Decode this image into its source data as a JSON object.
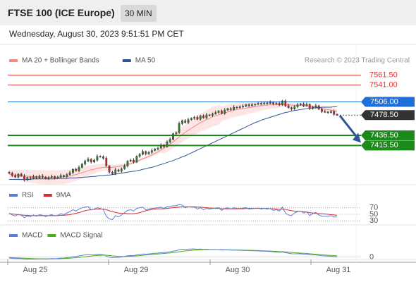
{
  "header": {
    "title": "FTSE 100 (ICE Europe)",
    "interval": "30 MIN",
    "timestamp": "Wednesday, August 30, 2023 9:51:51 PM CET"
  },
  "watermark": "Research © 2023 Trading Central",
  "colors": {
    "price_up": "#2e7d32",
    "price_down": "#c62828",
    "ma20": "#f28b82",
    "bollinger_fill": "#fde0e0",
    "ma50": "#2f5597",
    "resistance": "#e53935",
    "pivot": "#1e6fd9",
    "support": "#1b8a1b",
    "current": "#333333",
    "rsi": "#5b7fd6",
    "rsi_ma": "#d32f2f",
    "macd": "#5b7fd6",
    "macd_signal": "#4caf1f"
  },
  "chart_data": [
    {
      "type": "candlestick",
      "legend": [
        {
          "name": "MA 20 + Bollinger Bands",
          "color": "#f28b82"
        },
        {
          "name": "MA 50",
          "color": "#2f5597"
        }
      ],
      "x_ticks": [
        "Aug 25",
        "Aug 29",
        "Aug 30",
        "Aug 31"
      ],
      "ylim": [
        7334,
        7577
      ],
      "levels": [
        {
          "label": "7561.50",
          "value": 7561.5,
          "kind": "resistance"
        },
        {
          "label": "7541.00",
          "value": 7541.0,
          "kind": "resistance"
        },
        {
          "label": "7506.00",
          "value": 7506.0,
          "kind": "pivot"
        },
        {
          "label": "7478.50",
          "value": 7478.5,
          "kind": "current"
        },
        {
          "label": "7436.50",
          "value": 7436.5,
          "kind": "support"
        },
        {
          "label": "7415.50",
          "value": 7415.5,
          "kind": "support"
        }
      ],
      "close": [
        7358,
        7353,
        7350,
        7356,
        7352,
        7344,
        7349,
        7347,
        7351,
        7348,
        7352,
        7350,
        7347,
        7349,
        7351,
        7348,
        7350,
        7353,
        7351,
        7355,
        7359,
        7366,
        7363,
        7370,
        7377,
        7383,
        7387,
        7381,
        7385,
        7393,
        7392,
        7389,
        7373,
        7360,
        7357,
        7365,
        7362,
        7367,
        7373,
        7383,
        7385,
        7381,
        7393,
        7397,
        7403,
        7398,
        7401,
        7405,
        7408,
        7410,
        7416,
        7413,
        7423,
        7428,
        7440,
        7442,
        7461,
        7467,
        7463,
        7469,
        7472,
        7474,
        7470,
        7477,
        7473,
        7479,
        7478,
        7481,
        7484,
        7487,
        7482,
        7489,
        7492,
        7490,
        7495,
        7494,
        7496,
        7497,
        7500,
        7498,
        7500,
        7501,
        7503,
        7502,
        7504,
        7503,
        7505,
        7502,
        7503,
        7500,
        7508,
        7498,
        7494,
        7491,
        7496,
        7500,
        7502,
        7498,
        7501,
        7492,
        7495,
        7498,
        7491,
        7486,
        7485,
        7484,
        7486,
        7480,
        7479
      ],
      "ma20": [
        7356,
        7355,
        7354,
        7354,
        7353,
        7352,
        7352,
        7351,
        7351,
        7350,
        7350,
        7350,
        7349,
        7349,
        7349,
        7349,
        7349,
        7350,
        7350,
        7351,
        7352,
        7354,
        7355,
        7357,
        7359,
        7361,
        7363,
        7365,
        7366,
        7368,
        7369,
        7370,
        7370,
        7370,
        7370,
        7371,
        7372,
        7373,
        7374,
        7376,
        7378,
        7380,
        7382,
        7385,
        7388,
        7390,
        7393,
        7396,
        7399,
        7402,
        7406,
        7410,
        7414,
        7418,
        7423,
        7428,
        7433,
        7438,
        7443,
        7447,
        7451,
        7455,
        7459,
        7463,
        7466,
        7469,
        7472,
        7475,
        7477,
        7479,
        7481,
        7483,
        7485,
        7487,
        7489,
        7490,
        7491,
        7492,
        7493,
        7494,
        7495,
        7496,
        7497,
        7498,
        7499,
        7499,
        7500,
        7500,
        7500,
        7500,
        7501,
        7500,
        7500,
        7499,
        7499,
        7499,
        7499,
        7498,
        7498,
        7497,
        7496,
        7495,
        7494,
        7492,
        7491,
        7490,
        7489,
        7487,
        7486
      ],
      "ma50": [
        7345,
        7345,
        7345,
        7345,
        7345,
        7345,
        7345,
        7345,
        7346,
        7346,
        7346,
        7346,
        7346,
        7346,
        7346,
        7346,
        7347,
        7347,
        7347,
        7347,
        7348,
        7348,
        7348,
        7349,
        7349,
        7350,
        7350,
        7351,
        7351,
        7352,
        7353,
        7353,
        7354,
        7354,
        7355,
        7356,
        7357,
        7358,
        7359,
        7360,
        7361,
        7362,
        7363,
        7364,
        7366,
        7367,
        7369,
        7370,
        7372,
        7374,
        7376,
        7378,
        7380,
        7382,
        7384,
        7387,
        7389,
        7392,
        7394,
        7397,
        7400,
        7403,
        7406,
        7409,
        7412,
        7415,
        7418,
        7421,
        7424,
        7427,
        7430,
        7433,
        7436,
        7439,
        7442,
        7445,
        7448,
        7451,
        7454,
        7457,
        7460,
        7463,
        7465,
        7468,
        7470,
        7472,
        7474,
        7476,
        7478,
        7480,
        7482,
        7484,
        7485,
        7487,
        7488,
        7489,
        7490,
        7491,
        7492,
        7493,
        7493,
        7494,
        7494,
        7495,
        7495,
        7495,
        7495,
        7496,
        7496
      ]
    },
    {
      "type": "line",
      "legend": [
        {
          "name": "RSI",
          "color": "#5b7fd6"
        },
        {
          "name": "9MA",
          "color": "#d32f2f"
        }
      ],
      "y_ticks": [
        "70",
        "50",
        "30"
      ],
      "ylim": [
        20,
        80
      ],
      "rsi": [
        54,
        48,
        45,
        50,
        47,
        40,
        45,
        43,
        48,
        44,
        49,
        47,
        43,
        46,
        49,
        45,
        47,
        52,
        49,
        54,
        58,
        64,
        60,
        66,
        70,
        72,
        74,
        63,
        66,
        70,
        68,
        64,
        44,
        36,
        34,
        46,
        42,
        48,
        55,
        62,
        64,
        60,
        68,
        70,
        72,
        64,
        66,
        68,
        69,
        70,
        72,
        68,
        73,
        74,
        76,
        76,
        80,
        78,
        70,
        73,
        72,
        72,
        66,
        70,
        64,
        68,
        66,
        68,
        69,
        70,
        62,
        68,
        70,
        66,
        70,
        68,
        68,
        69,
        70,
        66,
        67,
        68,
        69,
        66,
        68,
        66,
        68,
        62,
        64,
        60,
        72,
        54,
        48,
        46,
        54,
        58,
        60,
        54,
        58,
        46,
        52,
        56,
        48,
        44,
        44,
        44,
        46,
        42,
        42
      ],
      "ma9": [
        52,
        51,
        50,
        49,
        48,
        47,
        47,
        46,
        46,
        46,
        46,
        46,
        46,
        46,
        46,
        46,
        46,
        47,
        47,
        48,
        49,
        51,
        53,
        55,
        58,
        61,
        63,
        64,
        65,
        66,
        66,
        66,
        64,
        61,
        58,
        56,
        54,
        53,
        53,
        52,
        52,
        52,
        53,
        55,
        58,
        61,
        63,
        65,
        66,
        67,
        67,
        67,
        68,
        69,
        70,
        71,
        72,
        73,
        73,
        73,
        73,
        73,
        72,
        72,
        71,
        70,
        69,
        69,
        68,
        68,
        67,
        67,
        67,
        67,
        67,
        67,
        67,
        67,
        68,
        68,
        68,
        68,
        68,
        68,
        68,
        68,
        67,
        67,
        66,
        65,
        66,
        65,
        63,
        61,
        60,
        59,
        59,
        58,
        57,
        55,
        54,
        53,
        52,
        52,
        51,
        50,
        49,
        48,
        47
      ]
    },
    {
      "type": "line",
      "legend": [
        {
          "name": "MACD",
          "color": "#5b7fd6"
        },
        {
          "name": "MACD Signal",
          "color": "#4caf1f"
        }
      ],
      "y_ticks": [
        "0"
      ],
      "ylim": [
        -10,
        22
      ],
      "macd": [
        -2,
        -2.5,
        -3,
        -2.8,
        -3.2,
        -4,
        -4,
        -4.2,
        -3.8,
        -4,
        -3.6,
        -3.6,
        -3.8,
        -3.5,
        -3,
        -3.1,
        -2.8,
        -2.2,
        -2,
        -1.4,
        -0.6,
        0.6,
        0.8,
        2,
        3,
        4,
        4.6,
        4,
        4.2,
        5,
        4.8,
        4.2,
        1.6,
        -0.5,
        -1.2,
        -0.6,
        -0.8,
        0,
        1,
        2.3,
        2.8,
        2.6,
        3.8,
        4.6,
        5.6,
        5.4,
        5.8,
        6.4,
        7,
        7.4,
        8.2,
        8.2,
        9.2,
        9.8,
        11.2,
        11.6,
        13.8,
        14.6,
        14.4,
        14.8,
        15,
        15.1,
        14.6,
        15,
        14.4,
        14.6,
        14.3,
        14.2,
        14.1,
        14,
        13.2,
        13.4,
        13.4,
        13,
        13.2,
        12.8,
        12.6,
        12.4,
        12.4,
        12,
        11.8,
        11.6,
        11.5,
        11.2,
        11,
        10.6,
        10.4,
        9.8,
        9.4,
        8.8,
        9.4,
        8.2,
        7.2,
        6.2,
        6,
        6,
        6,
        5.4,
        5.2,
        4,
        3.8,
        3.8,
        3.2,
        2.4,
        2,
        1.6,
        1.4,
        0.8,
        0.4
      ],
      "signal": [
        -1,
        -1.3,
        -1.6,
        -1.9,
        -2.1,
        -2.4,
        -2.7,
        -2.9,
        -3.1,
        -3.3,
        -3.4,
        -3.4,
        -3.5,
        -3.5,
        -3.5,
        -3.4,
        -3.3,
        -3.1,
        -2.9,
        -2.6,
        -2.3,
        -1.8,
        -1.3,
        -0.8,
        -0.2,
        0.4,
        1.1,
        1.7,
        2.3,
        2.8,
        3.2,
        3.5,
        3.3,
        2.8,
        2.2,
        1.6,
        1.1,
        0.9,
        0.9,
        1.1,
        1.4,
        1.6,
        2,
        2.5,
        3.1,
        3.6,
        4.1,
        4.6,
        5.1,
        5.6,
        6.1,
        6.6,
        7.1,
        7.6,
        8.3,
        8.9,
        9.8,
        10.6,
        11.3,
        11.9,
        12.5,
        13,
        13.3,
        13.6,
        13.8,
        14,
        14,
        14,
        14,
        14,
        13.8,
        13.7,
        13.6,
        13.5,
        13.4,
        13.3,
        13.1,
        13,
        12.8,
        12.6,
        12.5,
        12.3,
        12.1,
        11.9,
        11.7,
        11.4,
        11.2,
        10.9,
        10.6,
        10.2,
        10,
        9.6,
        9.1,
        8.6,
        8.1,
        7.7,
        7.4,
        7,
        6.6,
        6.1,
        5.6,
        5.2,
        4.8,
        4.3,
        3.9,
        3.4,
        3,
        2.6,
        2.1
      ]
    }
  ]
}
